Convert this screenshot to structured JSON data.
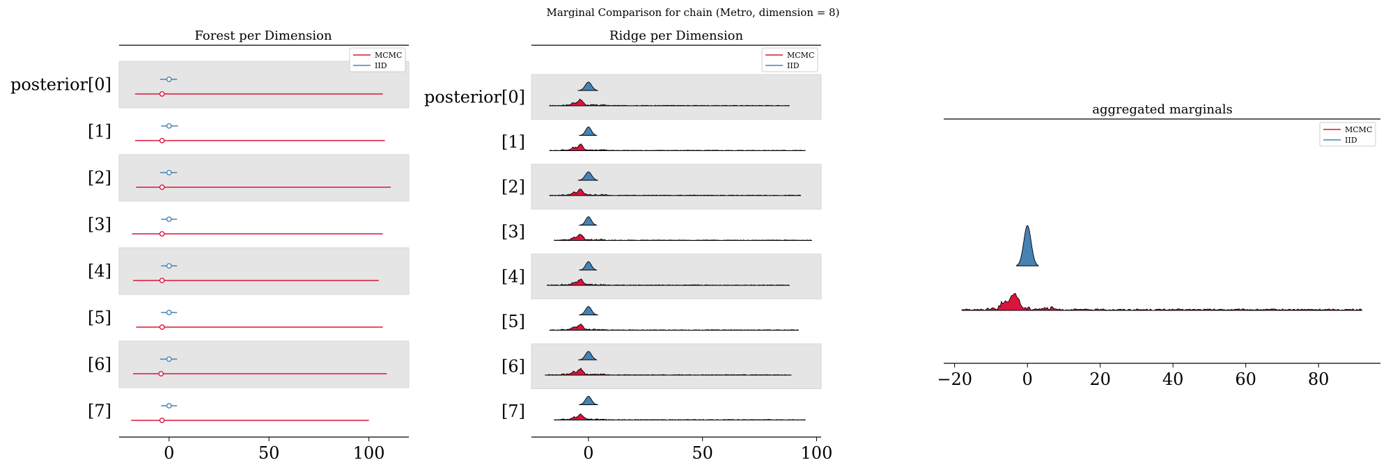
{
  "figure": {
    "suptitle": "Marginal Comparison for chain (Metro, dimension = 8)"
  },
  "colors": {
    "mcmc": "#dc143c",
    "iid": "#4682b4",
    "band": "#e5e5e5",
    "outline": "#000000"
  },
  "chart_data": [
    {
      "type": "forest",
      "title": "Forest per Dimension",
      "legend": {
        "entries": [
          "MCMC",
          "IID"
        ],
        "placement": "top-right"
      },
      "rows": [
        "posterior[0]",
        "[1]",
        "[2]",
        "[3]",
        "[4]",
        "[5]",
        "[6]",
        "[7]"
      ],
      "xlim": [
        -25,
        120
      ],
      "xticks": [
        0,
        50,
        100
      ],
      "xtick_labels": [
        "0",
        "50",
        "100"
      ],
      "series": [
        {
          "name": "MCMC",
          "center": [
            -3.5,
            -3.5,
            -3.5,
            -3.5,
            -3.5,
            -3.5,
            -4,
            -3.5
          ],
          "low": [
            -17,
            -17,
            -16.5,
            -18.5,
            -18,
            -16.5,
            -18,
            -19
          ],
          "high": [
            107,
            108,
            111,
            107,
            105,
            107,
            109,
            100
          ]
        },
        {
          "name": "IID",
          "center": [
            0,
            0,
            0,
            0,
            0,
            0,
            0,
            0
          ],
          "low": [
            -4.5,
            -4,
            -4.5,
            -4,
            -4,
            -4,
            -4.5,
            -4
          ],
          "high": [
            4,
            4.5,
            4,
            4,
            4,
            4,
            4,
            4
          ]
        }
      ]
    },
    {
      "type": "ridge",
      "title": "Ridge per Dimension",
      "legend": {
        "entries": [
          "MCMC",
          "IID"
        ],
        "placement": "top-right"
      },
      "rows": [
        "posterior[0]",
        "[1]",
        "[2]",
        "[3]",
        "[4]",
        "[5]",
        "[6]",
        "[7]"
      ],
      "xlim": [
        -25,
        102
      ],
      "xticks": [
        0,
        50,
        100
      ],
      "xtick_labels": [
        "0",
        "50",
        "100"
      ],
      "series": [
        {
          "name": "MCMC",
          "extent_low": [
            -17,
            -17,
            -17,
            -15,
            -18,
            -17,
            -19,
            -15
          ],
          "extent_high": [
            88,
            95,
            93,
            98,
            88,
            92,
            89,
            95
          ],
          "mode": -3.5
        },
        {
          "name": "IID",
          "extent_low": [
            -4.5,
            -4,
            -4.5,
            -4,
            -4,
            -4,
            -4.5,
            -4
          ],
          "extent_high": [
            4,
            3.5,
            4,
            3.5,
            3.5,
            4,
            3.5,
            4
          ],
          "mode": 0
        }
      ]
    },
    {
      "type": "ridge",
      "title": "aggregated marginals",
      "legend": {
        "entries": [
          "MCMC",
          "IID"
        ],
        "placement": "top-right"
      },
      "rows": [],
      "xlim": [
        -23,
        97
      ],
      "xticks": [
        -20,
        0,
        20,
        40,
        60,
        80
      ],
      "xtick_labels": [
        "−20",
        "0",
        "20",
        "40",
        "60",
        "80"
      ],
      "series": [
        {
          "name": "MCMC",
          "extent_low": -18,
          "extent_high": 92,
          "mode": -3.5
        },
        {
          "name": "IID",
          "extent_low": -3,
          "extent_high": 3,
          "mode": 0
        }
      ]
    }
  ]
}
